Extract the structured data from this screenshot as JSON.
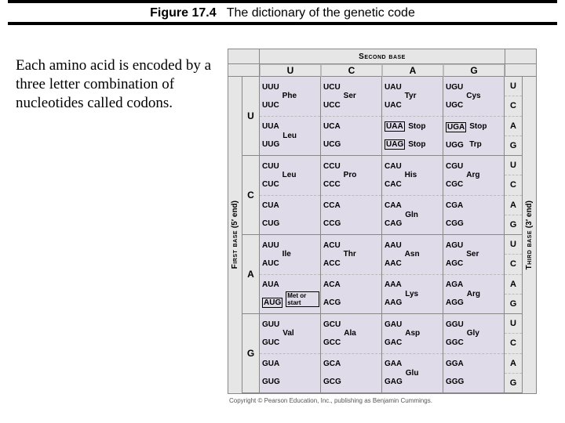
{
  "figure_label_prefix": "Figure 17.4",
  "figure_label_title": "The dictionary of the genetic code",
  "side_paragraph": "Each amino acid is encoded by a three letter combination of nucleotides called codons.",
  "copyright": "Copyright © Pearson Education, Inc., publishing as Benjamin Cummings.",
  "second_base_label": "Second base",
  "first_base_label": "First base",
  "first_base_sub": "(5′ end)",
  "third_base_label": "Third base",
  "third_base_sub": "(3′ end)",
  "bases": [
    "U",
    "C",
    "A",
    "G"
  ],
  "colors": {
    "row_header_bg": "#e6e6e6",
    "body_bg": "#e0dbe9",
    "border": "#888888",
    "dash": "#999999"
  },
  "table": {
    "U": {
      "U": [
        [
          "UUU",
          "UUC",
          "Phe"
        ],
        [
          "UUA",
          "UUG",
          "Leu"
        ]
      ],
      "C": [
        [
          "UCU",
          "UCC",
          "Ser"
        ],
        [
          "UCA",
          "UCG",
          ""
        ]
      ],
      "A": [
        [
          "UAU",
          "UAC",
          "Tyr"
        ],
        [
          "UAA",
          "UAG",
          "Stop",
          "Stop"
        ]
      ],
      "G": [
        [
          "UGU",
          "UGC",
          "Cys"
        ],
        [
          "UGA",
          "UGG",
          "Stop",
          "Trp"
        ]
      ]
    },
    "C": {
      "U": [
        [
          "CUU",
          "CUC",
          "Leu"
        ],
        [
          "CUA",
          "CUG",
          ""
        ]
      ],
      "C": [
        [
          "CCU",
          "CCC",
          "Pro"
        ],
        [
          "CCA",
          "CCG",
          ""
        ]
      ],
      "A": [
        [
          "CAU",
          "CAC",
          "His"
        ],
        [
          "CAA",
          "CAG",
          "Gln"
        ]
      ],
      "G": [
        [
          "CGU",
          "CGC",
          "Arg"
        ],
        [
          "CGA",
          "CGG",
          ""
        ]
      ]
    },
    "A": {
      "U": [
        [
          "AUU",
          "AUC",
          "Ile"
        ],
        [
          "AUA",
          "AUG",
          "",
          "Met or start"
        ]
      ],
      "C": [
        [
          "ACU",
          "ACC",
          "Thr"
        ],
        [
          "ACA",
          "ACG",
          ""
        ]
      ],
      "A": [
        [
          "AAU",
          "AAC",
          "Asn"
        ],
        [
          "AAA",
          "AAG",
          "Lys"
        ]
      ],
      "G": [
        [
          "AGU",
          "AGC",
          "Ser"
        ],
        [
          "AGA",
          "AGG",
          "Arg"
        ]
      ]
    },
    "G": {
      "U": [
        [
          "GUU",
          "GUC",
          "Val"
        ],
        [
          "GUA",
          "GUG",
          ""
        ]
      ],
      "C": [
        [
          "GCU",
          "GCC",
          "Ala"
        ],
        [
          "GCA",
          "GCG",
          ""
        ]
      ],
      "A": [
        [
          "GAU",
          "GAC",
          "Asp"
        ],
        [
          "GAA",
          "GAG",
          "Glu"
        ]
      ],
      "G": [
        [
          "GGU",
          "GGC",
          "Gly"
        ],
        [
          "GGA",
          "GGG",
          ""
        ]
      ]
    }
  }
}
